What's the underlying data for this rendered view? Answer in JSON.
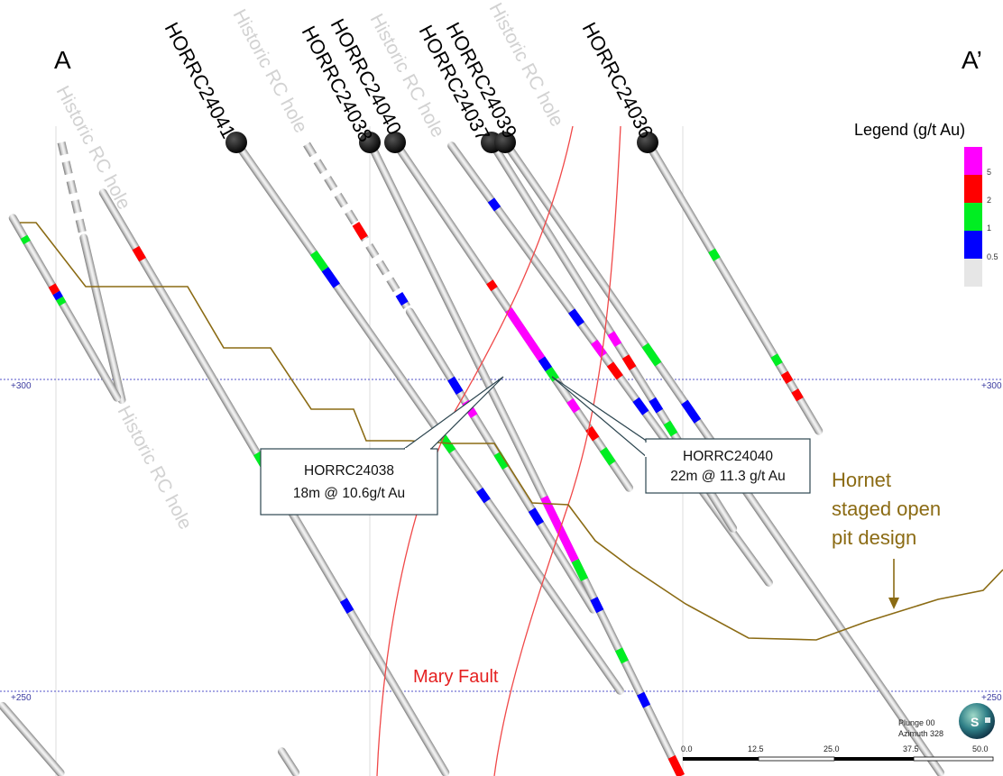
{
  "section": {
    "start_label": "A",
    "end_label": "A’"
  },
  "elevations": [
    "+300",
    "+250"
  ],
  "drillholes": [
    "HORRC24041",
    "HORRC24038",
    "HORRC24040",
    "HORRC24037",
    "HORRC24039",
    "HORRC24036"
  ],
  "historic_label": "Historic RC hole",
  "legend": {
    "title": "Legend (g/t Au)",
    "bins": [
      {
        "label": "5",
        "color": "#ff00ff"
      },
      {
        "label": "2",
        "color": "#ff0000"
      },
      {
        "label": "1",
        "color": "#00ee22"
      },
      {
        "label": "0.5",
        "color": "#0000ff"
      },
      {
        "label": "",
        "color": "#e6e6e6"
      }
    ]
  },
  "callouts": [
    {
      "hole": "HORRC24038",
      "intercept": "18m @ 10.6g/t Au"
    },
    {
      "hole": "HORRC24040",
      "intercept": "22m @ 11.3 g/t Au"
    }
  ],
  "pit_label": [
    "Hornet",
    "staged open",
    "pit design"
  ],
  "fault_label": "Mary Fault",
  "orientation": {
    "plunge": "Plunge 00",
    "azimuth": "Azimuth 328"
  },
  "scale_bar": {
    "ticks": [
      "0.0",
      "12.5",
      "25.0",
      "37.5",
      "50.0"
    ]
  },
  "colors": {
    "pit": "#8b6b14",
    "fault": "#f04848",
    "grid": "#5050c8"
  }
}
